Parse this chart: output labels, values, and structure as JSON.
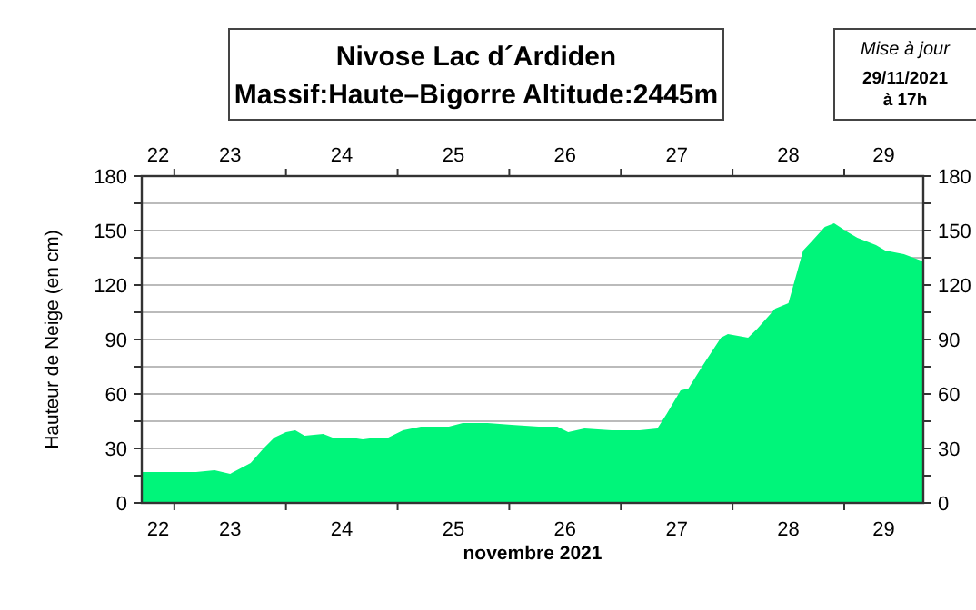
{
  "chart_data": {
    "type": "area",
    "title": "Nivose Lac d´Ardiden",
    "subtitle": "Massif:Haute–Bigorre Altitude:2445m",
    "annotations": [
      "Mise à jour",
      "29/11/2021\nà 17h"
    ],
    "xlabel": "novembre 2021",
    "ylabel": "Hauteur de Neige (en cm)",
    "color": "#00f57a",
    "grid": "y",
    "x": [
      "2021-11-22T17:00",
      "2021-11-23T00:00",
      "2021-11-23T04:40",
      "2021-11-23T08:40",
      "2021-11-23T12:00",
      "2021-11-23T16:25",
      "2021-11-23T19:10",
      "2021-11-23T21:30",
      "2021-11-24T00:00",
      "2021-11-24T02:00",
      "2021-11-24T04:00",
      "2021-11-24T08:00",
      "2021-11-24T10:00",
      "2021-11-24T13:50",
      "2021-11-24T16:30",
      "2021-11-24T19:30",
      "2021-11-24T22:00",
      "2021-11-25T01:10",
      "2021-11-25T05:00",
      "2021-11-25T11:00",
      "2021-11-25T14:00",
      "2021-11-25T19:20",
      "2021-11-26T00:30",
      "2021-11-26T06:20",
      "2021-11-26T10:20",
      "2021-11-26T12:40",
      "2021-11-26T16:10",
      "2021-11-26T22:00",
      "2021-11-27T04:00",
      "2021-11-27T07:50",
      "2021-11-27T09:50",
      "2021-11-27T12:50",
      "2021-11-27T14:30",
      "2021-11-27T17:40",
      "2021-11-27T21:30",
      "2021-11-27T23:00",
      "2021-11-28T03:20",
      "2021-11-28T05:20",
      "2021-11-28T09:10",
      "2021-11-28T12:00",
      "2021-11-28T15:10",
      "2021-11-28T17:00",
      "2021-11-28T19:50",
      "2021-11-28T21:50",
      "2021-11-29T00:50",
      "2021-11-29T02:50",
      "2021-11-29T06:50",
      "2021-11-29T08:50",
      "2021-11-29T12:50",
      "2021-11-29T17:00"
    ],
    "values": [
      17,
      17,
      17,
      18,
      16,
      22,
      30,
      36,
      39,
      40,
      37,
      38,
      36,
      36,
      35,
      36,
      36,
      40,
      42,
      42,
      44,
      44,
      43,
      42,
      42,
      39,
      41,
      40,
      40,
      41,
      49,
      62,
      63,
      76,
      91,
      93,
      91,
      96,
      107,
      110,
      139,
      144,
      152,
      154,
      149,
      146,
      142,
      139,
      137,
      133
    ],
    "xlim": [
      "2021-11-22T17:00",
      "2021-11-29T17:00"
    ],
    "xticks": [
      {
        "value": "2021-11-22T20:30",
        "label": "22"
      },
      {
        "value": "2021-11-23T00:00",
        "label": null
      },
      {
        "value": "2021-11-23T12:00",
        "label": "23"
      },
      {
        "value": "2021-11-24T00:00",
        "label": null
      },
      {
        "value": "2021-11-24T12:00",
        "label": "24"
      },
      {
        "value": "2021-11-25T00:00",
        "label": null
      },
      {
        "value": "2021-11-25T12:00",
        "label": "25"
      },
      {
        "value": "2021-11-26T00:00",
        "label": null
      },
      {
        "value": "2021-11-26T12:00",
        "label": "26"
      },
      {
        "value": "2021-11-27T00:00",
        "label": null
      },
      {
        "value": "2021-11-27T12:00",
        "label": "27"
      },
      {
        "value": "2021-11-28T00:00",
        "label": null
      },
      {
        "value": "2021-11-28T12:00",
        "label": "28"
      },
      {
        "value": "2021-11-29T00:00",
        "label": null
      },
      {
        "value": "2021-11-29T08:30",
        "label": "29"
      }
    ],
    "x2lim": [
      "2021-11-22T17:00",
      "2021-11-29T17:00"
    ],
    "x2ticks": [
      {
        "value": "2021-11-22T20:30",
        "label": "22"
      },
      {
        "value": "2021-11-23T00:00",
        "label": null
      },
      {
        "value": "2021-11-23T12:00",
        "label": "23"
      },
      {
        "value": "2021-11-24T00:00",
        "label": null
      },
      {
        "value": "2021-11-24T12:00",
        "label": "24"
      },
      {
        "value": "2021-11-25T00:00",
        "label": null
      },
      {
        "value": "2021-11-25T12:00",
        "label": "25"
      },
      {
        "value": "2021-11-26T00:00",
        "label": null
      },
      {
        "value": "2021-11-26T12:00",
        "label": "26"
      },
      {
        "value": "2021-11-27T00:00",
        "label": null
      },
      {
        "value": "2021-11-27T12:00",
        "label": "27"
      },
      {
        "value": "2021-11-28T00:00",
        "label": null
      },
      {
        "value": "2021-11-28T12:00",
        "label": "28"
      },
      {
        "value": "2021-11-29T00:00",
        "label": null
      },
      {
        "value": "2021-11-29T08:30",
        "label": "29"
      }
    ],
    "ylim": [
      0,
      180
    ],
    "yticks": [
      0,
      {
        "value": 15,
        "label": null
      },
      30,
      {
        "value": 45,
        "label": null
      },
      60,
      {
        "value": 75,
        "label": null
      },
      90,
      {
        "value": 105,
        "label": null
      },
      120,
      {
        "value": 135,
        "label": null
      },
      150,
      {
        "value": 165,
        "label": null
      },
      180
    ],
    "y2lim": [
      0,
      180
    ],
    "y2ticks": [
      0,
      {
        "value": 15,
        "label": null
      },
      30,
      {
        "value": 45,
        "label": null
      },
      60,
      {
        "value": 75,
        "label": null
      },
      90,
      {
        "value": 105,
        "label": null
      },
      120,
      {
        "value": 135,
        "label": null
      },
      150,
      {
        "value": 165,
        "label": null
      },
      180
    ]
  }
}
